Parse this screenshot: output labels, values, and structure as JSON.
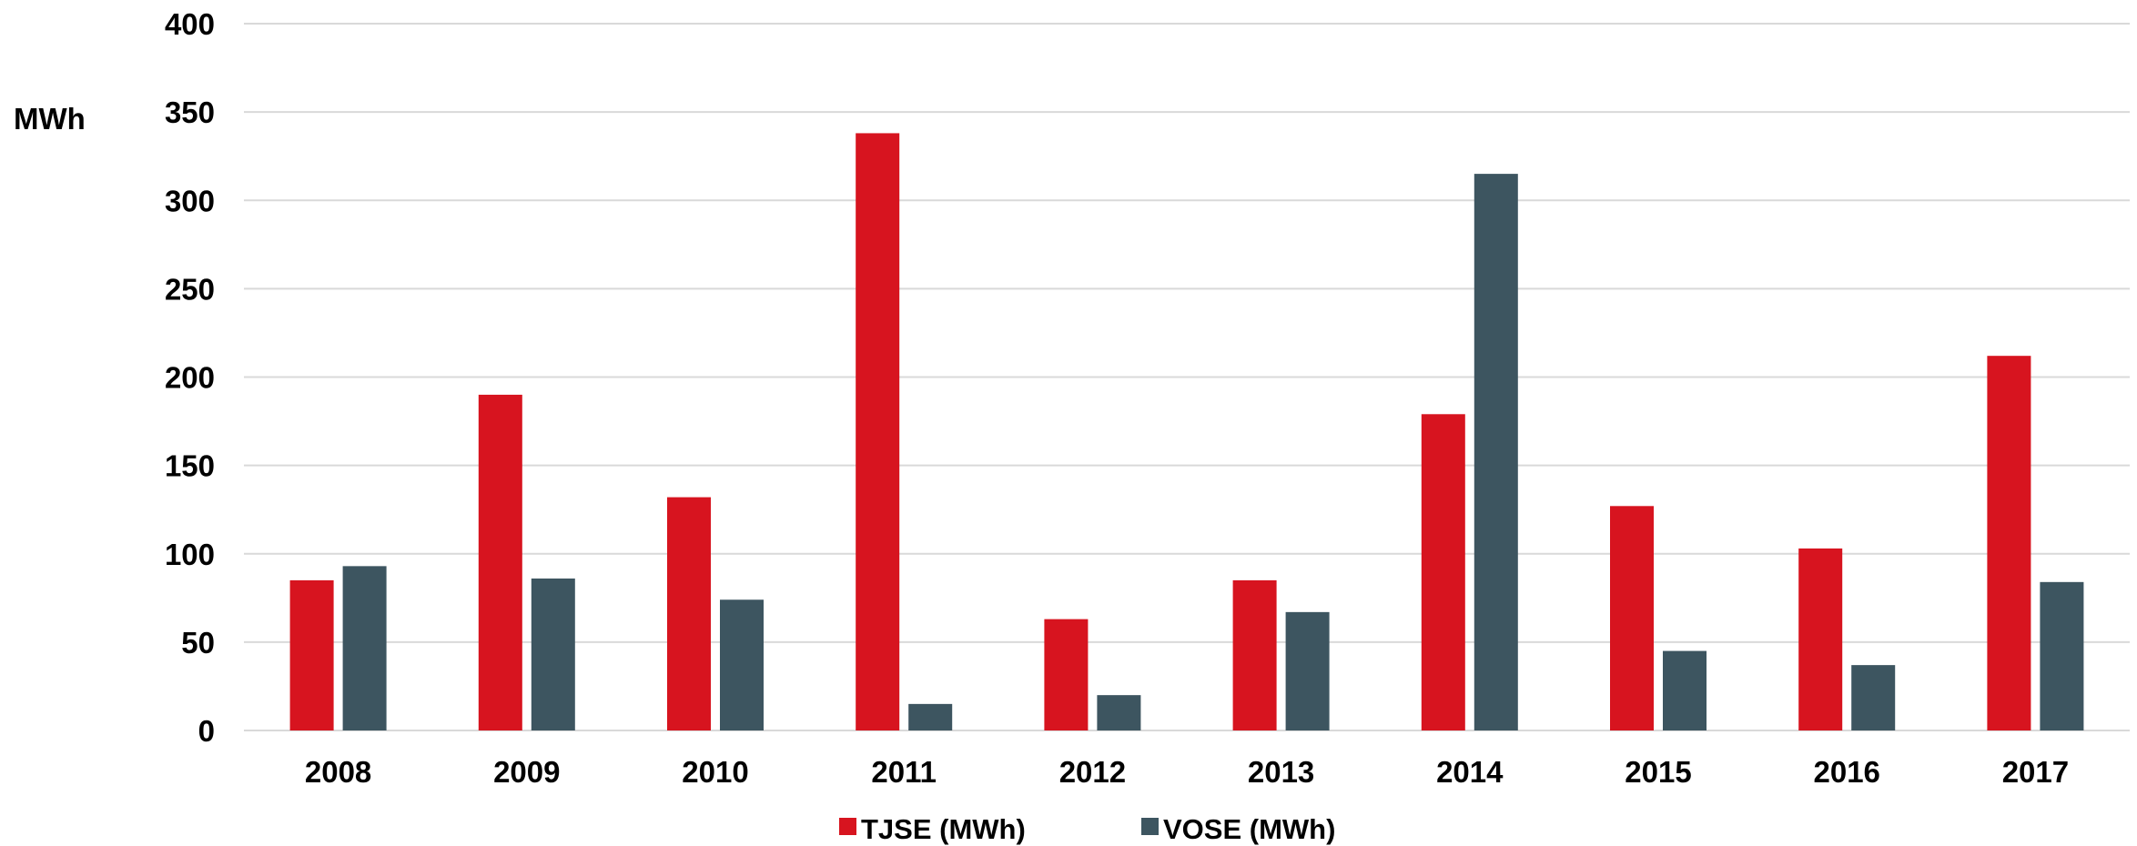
{
  "chart_data": {
    "type": "bar",
    "title": "",
    "xlabel": "",
    "ylabel": "MWh",
    "ylim": [
      0,
      400
    ],
    "yticks": [
      0,
      50,
      100,
      150,
      200,
      250,
      300,
      350,
      400
    ],
    "grid": true,
    "legend_position": "bottom",
    "categories": [
      "2008",
      "2009",
      "2010",
      "2011",
      "2012",
      "2013",
      "2014",
      "2015",
      "2016",
      "2017"
    ],
    "series": [
      {
        "name": "TJSE (MWh)",
        "color": "#d7141f",
        "values": [
          85,
          190,
          132,
          338,
          63,
          85,
          179,
          127,
          103,
          212
        ]
      },
      {
        "name": "VOSE (MWh)",
        "color": "#3d5560",
        "values": [
          93,
          86,
          74,
          15,
          20,
          67,
          315,
          45,
          37,
          84
        ]
      }
    ]
  }
}
